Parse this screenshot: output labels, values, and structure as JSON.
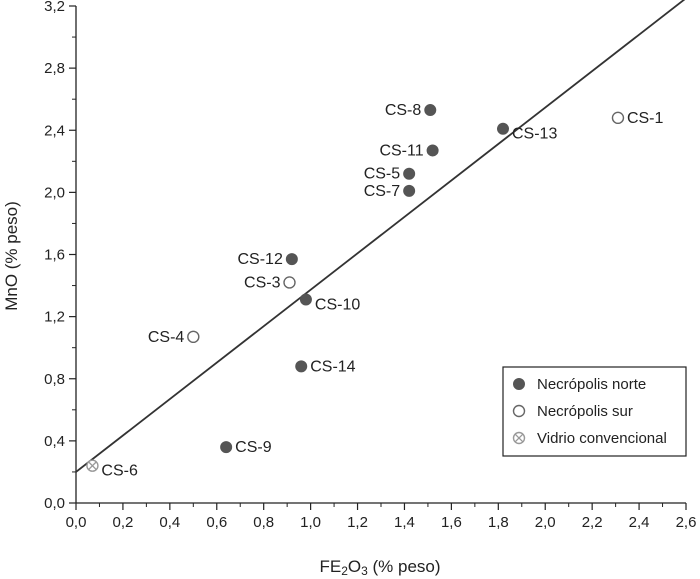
{
  "chart_data": {
    "type": "scatter",
    "xlabel": {
      "prefix": "FE",
      "sub1": "2",
      "mid": "O",
      "sub2": "3",
      "suffix": " (% peso)"
    },
    "ylabel": "MnO (% peso)",
    "xlim": [
      0,
      2.6
    ],
    "ylim": [
      0,
      3.2
    ],
    "x_ticks": [
      "0,0",
      "0,2",
      "0,4",
      "0,6",
      "0,8",
      "1,0",
      "1,2",
      "1,4",
      "1,6",
      "1,8",
      "2,0",
      "2,2",
      "2,4",
      "2,6"
    ],
    "y_ticks": [
      "0,0",
      "0,4",
      "0,8",
      "1,2",
      "1,6",
      "2,0",
      "2,4",
      "2,8",
      "3,2"
    ],
    "grid": false,
    "legend_position": "bottom-right",
    "colors": {
      "filled": "#555555",
      "open_stroke": "#666666",
      "cross": "#999999"
    },
    "series": [
      {
        "name": "Necrópolis norte",
        "marker": "filled",
        "points": [
          {
            "label": "CS-8",
            "x": 1.51,
            "y": 2.53
          },
          {
            "label": "CS-13",
            "x": 1.82,
            "y": 2.41
          },
          {
            "label": "CS-11",
            "x": 1.52,
            "y": 2.27
          },
          {
            "label": "CS-5",
            "x": 1.42,
            "y": 2.12
          },
          {
            "label": "CS-7",
            "x": 1.42,
            "y": 2.01
          },
          {
            "label": "CS-12",
            "x": 0.92,
            "y": 1.57
          },
          {
            "label": "CS-10",
            "x": 0.98,
            "y": 1.31
          },
          {
            "label": "CS-14",
            "x": 0.96,
            "y": 0.88
          },
          {
            "label": "CS-9",
            "x": 0.64,
            "y": 0.36
          }
        ]
      },
      {
        "name": "Necrópolis sur",
        "marker": "open",
        "points": [
          {
            "label": "CS-1",
            "x": 2.31,
            "y": 2.48
          },
          {
            "label": "CS-3",
            "x": 0.91,
            "y": 1.42
          },
          {
            "label": "CS-4",
            "x": 0.5,
            "y": 1.07
          }
        ]
      },
      {
        "name": "Vidrio convencional",
        "marker": "cross",
        "points": [
          {
            "label": "CS-6",
            "x": 0.07,
            "y": 0.24
          }
        ]
      }
    ],
    "trendline": {
      "x1": 0.0,
      "y1": 0.2,
      "x2": 2.6,
      "y2": 3.25
    }
  }
}
